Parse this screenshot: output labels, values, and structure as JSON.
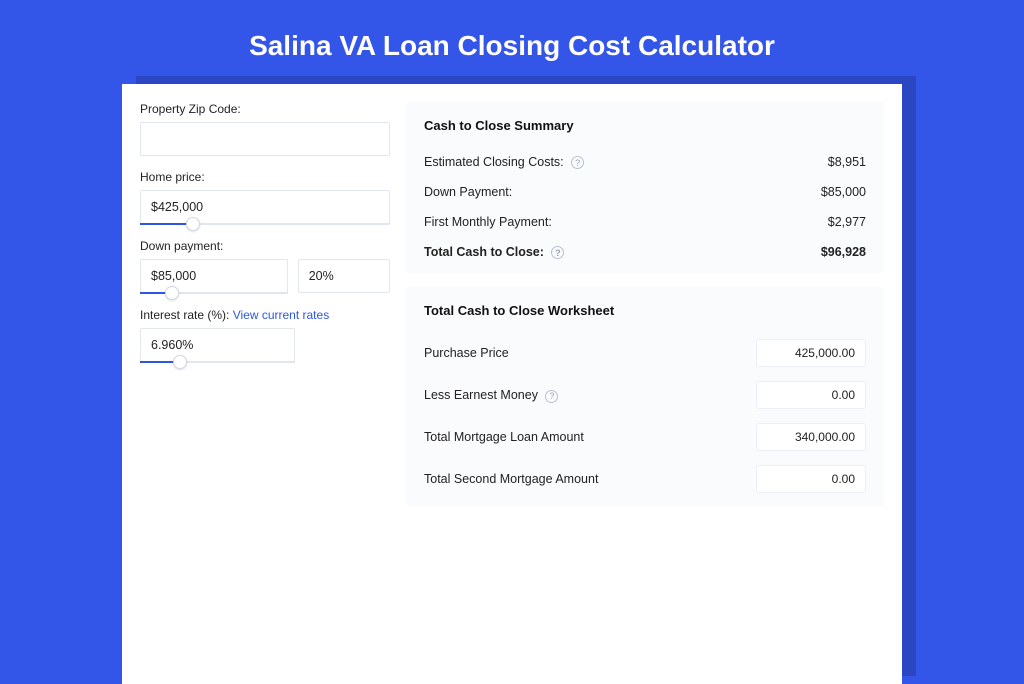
{
  "colors": {
    "page_bg": "#3355e8",
    "shadow_bg": "#2a46c2",
    "card_bg": "#ffffff",
    "panel_bg": "#fafbfd",
    "accent": "#2d55e6",
    "border": "#e2e6ee",
    "text": "#222222"
  },
  "page_title": "Salina VA Loan Closing Cost Calculator",
  "left": {
    "zip": {
      "label": "Property Zip Code:",
      "value": ""
    },
    "home_price": {
      "label": "Home price:",
      "value": "$425,000",
      "slider_pct": 21
    },
    "down_payment": {
      "label": "Down payment:",
      "value": "$85,000",
      "pct_value": "20%",
      "slider_pct": 22
    },
    "interest": {
      "label": "Interest rate (%): ",
      "link_text": "View current rates",
      "value": "6.960%",
      "slider_pct": 26
    }
  },
  "summary": {
    "title": "Cash to Close Summary",
    "rows": [
      {
        "label": "Estimated Closing Costs:",
        "value": "$8,951",
        "help": true
      },
      {
        "label": "Down Payment:",
        "value": "$85,000",
        "help": false
      },
      {
        "label": "First Monthly Payment:",
        "value": "$2,977",
        "help": false
      }
    ],
    "total": {
      "label": "Total Cash to Close:",
      "value": "$96,928",
      "help": true
    }
  },
  "worksheet": {
    "title": "Total Cash to Close Worksheet",
    "rows": [
      {
        "label": "Purchase Price",
        "value": "425,000.00",
        "help": false
      },
      {
        "label": "Less Earnest Money",
        "value": "0.00",
        "help": true
      },
      {
        "label": "Total Mortgage Loan Amount",
        "value": "340,000.00",
        "help": false
      },
      {
        "label": "Total Second Mortgage Amount",
        "value": "0.00",
        "help": false
      }
    ]
  }
}
